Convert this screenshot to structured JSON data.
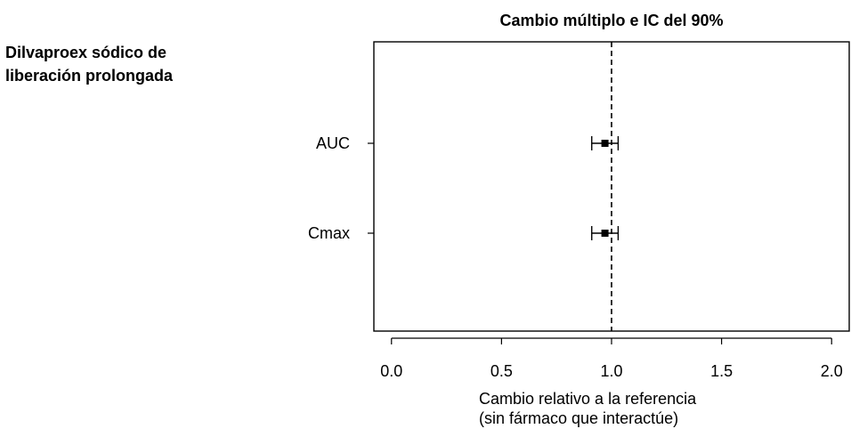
{
  "chart_data": {
    "type": "scatter",
    "subtype": "forest-plot",
    "group_title_line1": "Dilvaproex sódico de",
    "group_title_line2": "liberación prolongada",
    "title": "Cambio múltiplo e IC del 90%",
    "xlabel_line1": "Cambio relativo a la referencia",
    "xlabel_line2": "(sin fármaco que interactúe)",
    "xlim": [
      -0.08,
      2.08
    ],
    "x_ticks": [
      0.0,
      0.5,
      1.0,
      1.5,
      2.0
    ],
    "x_tick_labels": [
      "0.0",
      "0.5",
      "1.0",
      "1.5",
      "2.0"
    ],
    "reference_line": 1.0,
    "reference_line_style": "dashed",
    "grid": false,
    "rows": [
      {
        "label": "AUC",
        "estimate": 0.97,
        "ci_low": 0.91,
        "ci_high": 1.03
      },
      {
        "label": "Cmax",
        "estimate": 0.97,
        "ci_low": 0.91,
        "ci_high": 1.03
      }
    ]
  }
}
